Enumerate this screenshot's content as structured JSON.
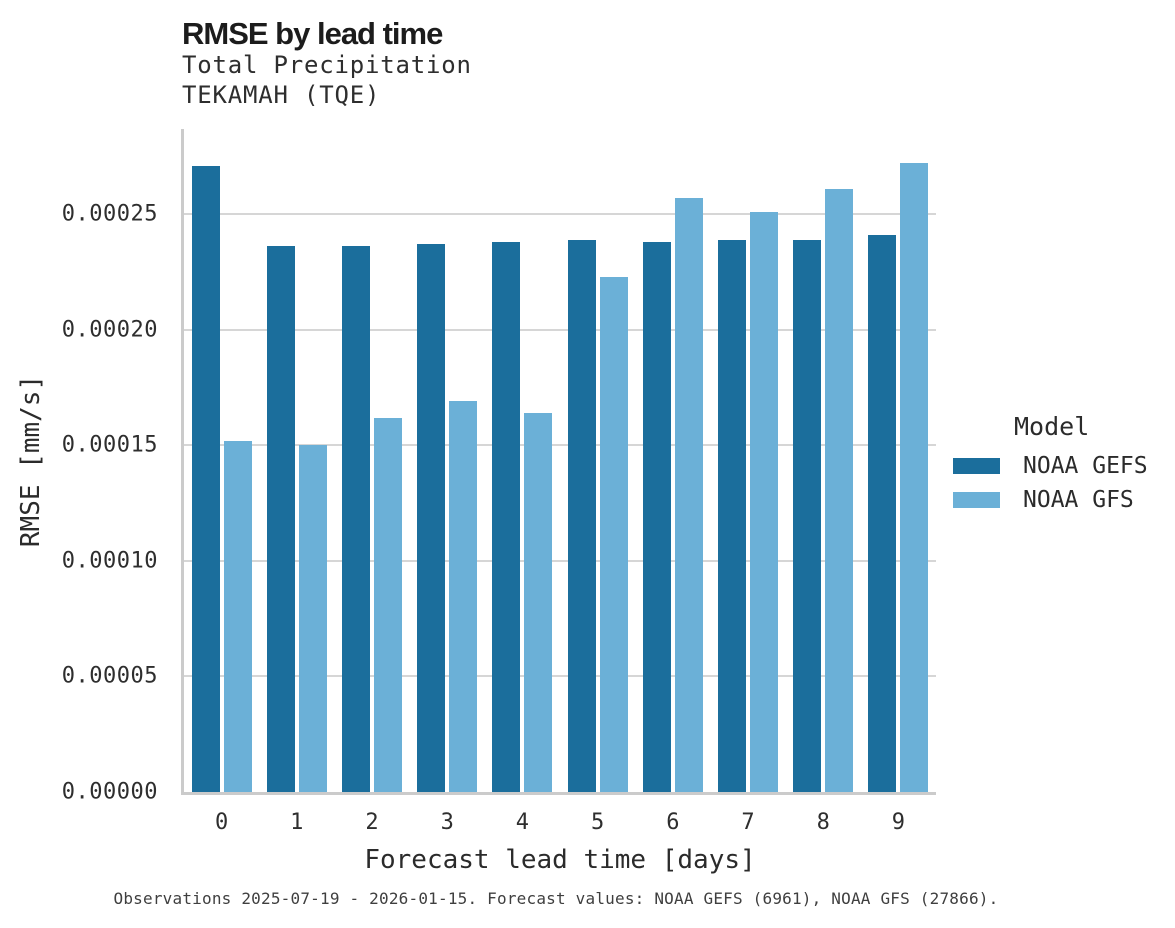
{
  "header": {
    "title": "RMSE by lead time",
    "subtitle_line1": "Total Precipitation",
    "subtitle_line2": "TEKAMAH (TQE)"
  },
  "chart_data": {
    "type": "bar",
    "title": "RMSE by lead time",
    "subtitle": [
      "Total Precipitation",
      "TEKAMAH (TQE)"
    ],
    "categories": [
      "0",
      "1",
      "2",
      "3",
      "4",
      "5",
      "6",
      "7",
      "8",
      "9"
    ],
    "series": [
      {
        "name": "NOAA GEFS",
        "color": "#1b6e9c",
        "values": [
          0.000271,
          0.000236,
          0.000236,
          0.000237,
          0.000238,
          0.000239,
          0.000238,
          0.000239,
          0.000239,
          0.000241
        ]
      },
      {
        "name": "NOAA GFS",
        "color": "#6bb0d7",
        "values": [
          0.000152,
          0.00015,
          0.000162,
          0.000169,
          0.000164,
          0.000223,
          0.000257,
          0.000251,
          0.000261,
          0.000272
        ]
      }
    ],
    "xlabel": "Forecast lead time [days]",
    "ylabel": "RMSE [mm/s]",
    "ylim": [
      0,
      0.0002868
    ],
    "yticks": [
      0.0,
      5e-05,
      0.0001,
      0.00015,
      0.0002,
      0.00025
    ],
    "ytick_labels": [
      "0.00000",
      "0.00005",
      "0.00010",
      "0.00015",
      "0.00020",
      "0.00025"
    ],
    "grid": "horizontal",
    "legend": {
      "title": "Model",
      "position": "right"
    }
  },
  "caption": "Observations 2025-07-19 - 2026-01-15. Forecast values: NOAA GEFS (6961), NOAA GFS (27866).",
  "colors": {
    "grid": "#d6d6d6",
    "axis": "#cbcbcb",
    "background": "#ffffff"
  }
}
